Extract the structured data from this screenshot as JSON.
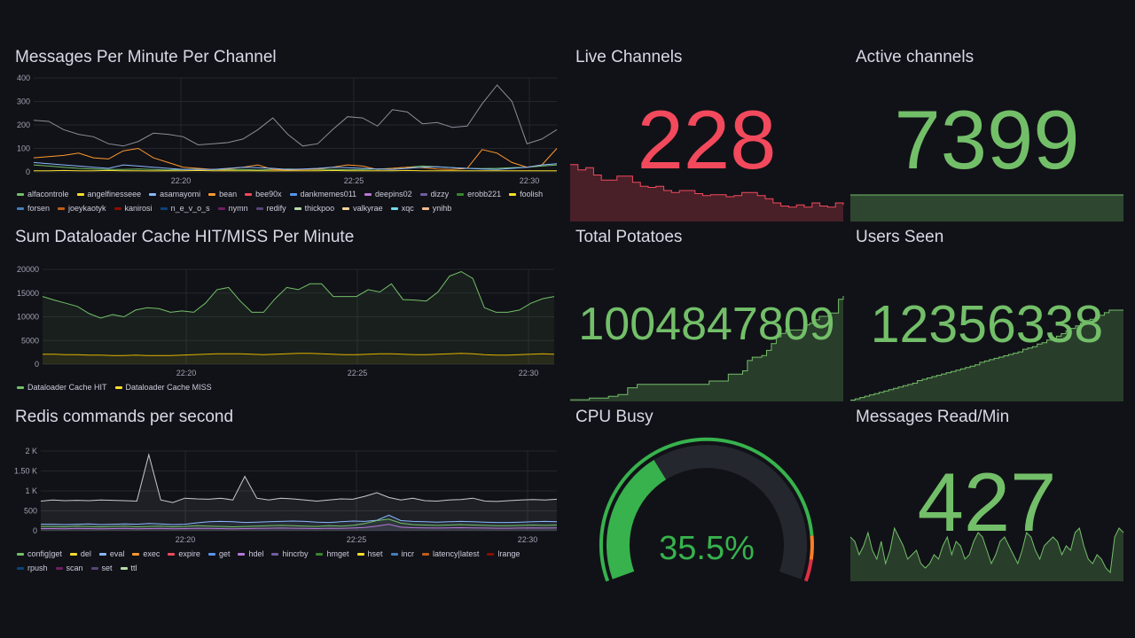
{
  "panels": {
    "messages": {
      "title": "Messages Per Minute Per Channel",
      "legend": [
        {
          "name": "alfacontrole",
          "color": "#73bf69"
        },
        {
          "name": "angelfinesseee",
          "color": "#fade2a"
        },
        {
          "name": "asamayomi",
          "color": "#8ab8ff"
        },
        {
          "name": "bean",
          "color": "#ff9830"
        },
        {
          "name": "bee90x",
          "color": "#f2495c"
        },
        {
          "name": "dankmemes011",
          "color": "#5794f2"
        },
        {
          "name": "deepins02",
          "color": "#b877d9"
        },
        {
          "name": "dizzy",
          "color": "#705da0"
        },
        {
          "name": "erobb221",
          "color": "#37872d"
        },
        {
          "name": "foolish",
          "color": "#fade2a"
        },
        {
          "name": "forsen",
          "color": "#447ebc"
        },
        {
          "name": "joeykaotyk",
          "color": "#c15c17"
        },
        {
          "name": "kanirosi",
          "color": "#890f02"
        },
        {
          "name": "n_e_v_o_s",
          "color": "#0a437c"
        },
        {
          "name": "nymn",
          "color": "#6d1f62"
        },
        {
          "name": "redify",
          "color": "#584477"
        },
        {
          "name": "thickpoo",
          "color": "#b7dbab"
        },
        {
          "name": "valkyrae",
          "color": "#f4d598"
        },
        {
          "name": "xqc",
          "color": "#70dbed"
        },
        {
          "name": "ynihb",
          "color": "#f9ba8f"
        }
      ]
    },
    "dataloader": {
      "title": "Sum Dataloader Cache HIT/MISS Per Minute",
      "legend": [
        {
          "name": "Dataloader Cache HIT",
          "color": "#73bf69"
        },
        {
          "name": "Dataloader Cache MISS",
          "color": "#fade2a"
        }
      ]
    },
    "redis": {
      "title": "Redis commands per second",
      "legend": [
        {
          "name": "config|get",
          "color": "#73bf69"
        },
        {
          "name": "del",
          "color": "#fade2a"
        },
        {
          "name": "eval",
          "color": "#8ab8ff"
        },
        {
          "name": "exec",
          "color": "#ff9830"
        },
        {
          "name": "expire",
          "color": "#f2495c"
        },
        {
          "name": "get",
          "color": "#5794f2"
        },
        {
          "name": "hdel",
          "color": "#b877d9"
        },
        {
          "name": "hincrby",
          "color": "#705da0"
        },
        {
          "name": "hmget",
          "color": "#37872d"
        },
        {
          "name": "hset",
          "color": "#fade2a"
        },
        {
          "name": "incr",
          "color": "#447ebc"
        },
        {
          "name": "latency|latest",
          "color": "#c15c17"
        },
        {
          "name": "lrange",
          "color": "#890f02"
        },
        {
          "name": "rpush",
          "color": "#0a437c"
        },
        {
          "name": "scan",
          "color": "#6d1f62"
        },
        {
          "name": "set",
          "color": "#584477"
        },
        {
          "name": "ttl",
          "color": "#b7dbab"
        }
      ]
    },
    "live_channels": {
      "title": "Live Channels",
      "value": "228",
      "color": "#f2495c"
    },
    "active_channels": {
      "title": "Active channels",
      "value": "7399",
      "color": "#73bf69"
    },
    "total_potatoes": {
      "title": "Total Potatoes",
      "value": "1004847809",
      "color": "#73bf69"
    },
    "users_seen": {
      "title": "Users Seen",
      "value": "12356338",
      "color": "#73bf69"
    },
    "cpu_busy": {
      "title": "CPU Busy",
      "value": "35.5%",
      "percent": 35.5,
      "color": "#37b24d"
    },
    "messages_read": {
      "title": "Messages Read/Min",
      "value": "427",
      "color": "#73bf69"
    }
  },
  "chart_data": [
    {
      "type": "line",
      "title": "Messages Per Minute Per Channel",
      "xlabel": "",
      "ylabel": "",
      "x_ticks": [
        "22:20",
        "22:25",
        "22:30"
      ],
      "y_ticks": [
        "0",
        "100",
        "200",
        "300",
        "400"
      ],
      "ylim": [
        0,
        400
      ],
      "series": [
        {
          "name": "alfacontrole",
          "values": [
            30,
            25,
            20,
            15,
            12,
            10,
            10,
            12,
            10,
            8,
            10,
            12,
            10,
            9,
            10,
            8,
            10,
            12,
            11,
            10,
            10,
            9,
            10,
            12,
            15,
            20,
            25,
            22,
            18,
            15,
            14,
            15,
            18,
            20,
            25,
            30
          ]
        },
        {
          "name": "angelfinesseee",
          "values": [
            5,
            5,
            6,
            5,
            5,
            6,
            5,
            5,
            4,
            5,
            5,
            6,
            5,
            5,
            5,
            5,
            4,
            5,
            5,
            5,
            6,
            5,
            5,
            5,
            5,
            6,
            5,
            5,
            5,
            5,
            5,
            5,
            5,
            5,
            5,
            5
          ]
        },
        {
          "name": "asamayomi",
          "values": [
            220,
            215,
            180,
            160,
            150,
            120,
            110,
            130,
            165,
            160,
            150,
            115,
            120,
            125,
            140,
            180,
            230,
            160,
            110,
            120,
            180,
            235,
            230,
            195,
            265,
            255,
            205,
            210,
            190,
            195,
            290,
            370,
            300,
            120,
            140,
            180
          ]
        },
        {
          "name": "bean",
          "values": [
            60,
            65,
            70,
            80,
            60,
            55,
            90,
            100,
            60,
            40,
            20,
            15,
            10,
            12,
            20,
            30,
            10,
            8,
            10,
            12,
            20,
            30,
            25,
            10,
            15,
            20,
            18,
            12,
            10,
            15,
            95,
            80,
            40,
            20,
            30,
            100
          ]
        },
        {
          "name": "bee90x",
          "values": [
            40,
            35,
            30,
            25,
            20,
            15,
            30,
            25,
            20,
            15,
            10,
            10,
            10,
            15,
            20,
            18,
            15,
            10,
            12,
            15,
            20,
            18,
            15,
            12,
            10,
            15,
            20,
            22,
            18,
            15,
            12,
            10,
            15,
            20,
            30,
            35
          ]
        }
      ]
    },
    {
      "type": "line",
      "title": "Sum Dataloader Cache HIT/MISS Per Minute",
      "xlabel": "",
      "ylabel": "",
      "x_ticks": [
        "22:20",
        "22:25",
        "22:30"
      ],
      "y_ticks": [
        "0",
        "5000",
        "10000",
        "15000",
        "20000"
      ],
      "ylim": [
        0,
        21000
      ],
      "series": [
        {
          "name": "Dataloader Cache HIT",
          "values": [
            15000,
            14200,
            13500,
            12800,
            11200,
            10200,
            11000,
            10500,
            12000,
            12500,
            12300,
            11500,
            11800,
            11500,
            13500,
            16500,
            17000,
            14000,
            11500,
            11500,
            14500,
            17000,
            16500,
            17800,
            17800,
            15000,
            15000,
            15000,
            16500,
            16000,
            17800,
            14300,
            14200,
            14000,
            16000,
            19500,
            20500,
            19000,
            12500,
            11500,
            11500,
            12000,
            13500,
            14500,
            15000
          ]
        },
        {
          "name": "Dataloader Cache MISS",
          "values": [
            2200,
            2200,
            2100,
            2100,
            2000,
            2000,
            1900,
            1900,
            2000,
            1900,
            1900,
            1900,
            2000,
            2100,
            2200,
            2300,
            2300,
            2300,
            2200,
            2100,
            2200,
            2300,
            2400,
            2400,
            2300,
            2200,
            2100,
            2100,
            2200,
            2300,
            2300,
            2200,
            2100,
            2100,
            2200,
            2300,
            2400,
            2300,
            2100,
            2000,
            2000,
            2100,
            2200,
            2300,
            2200
          ]
        }
      ]
    },
    {
      "type": "line",
      "title": "Redis commands per second",
      "xlabel": "",
      "ylabel": "",
      "x_ticks": [
        "22:20",
        "22:25",
        "22:30"
      ],
      "y_ticks": [
        "0",
        "500",
        "1 K",
        "1.50 K",
        "2 K"
      ],
      "ylim": [
        0,
        2200
      ],
      "series": [
        {
          "name": "config|get",
          "values": [
            820,
            850,
            830,
            840,
            830,
            850,
            840,
            830,
            820,
            2100,
            850,
            780,
            900,
            880,
            870,
            900,
            850,
            1500,
            900,
            850,
            900,
            880,
            850,
            820,
            850,
            880,
            870,
            950,
            1050,
            920,
            850,
            900,
            830,
            820,
            850,
            860,
            900,
            820,
            810,
            830,
            850,
            860,
            850,
            870
          ]
        },
        {
          "name": "get",
          "values": [
            180,
            180,
            170,
            180,
            190,
            170,
            180,
            190,
            180,
            200,
            190,
            170,
            180,
            220,
            250,
            260,
            250,
            230,
            240,
            250,
            260,
            270,
            260,
            240,
            230,
            250,
            270,
            260,
            290,
            430,
            280,
            260,
            250,
            240,
            250,
            260,
            250,
            240,
            230,
            230,
            240,
            250,
            260,
            250
          ]
        },
        {
          "name": "hmget",
          "values": [
            120,
            120,
            110,
            130,
            120,
            110,
            120,
            130,
            110,
            120,
            130,
            110,
            120,
            140,
            130,
            120,
            110,
            120,
            130,
            140,
            150,
            140,
            130,
            120,
            140,
            130,
            150,
            200,
            280,
            320,
            210,
            170,
            160,
            150,
            160,
            170,
            160,
            150,
            140,
            140,
            150,
            160,
            150,
            160
          ]
        },
        {
          "name": "set",
          "values": [
            60,
            60,
            55,
            65,
            60,
            55,
            60,
            65,
            55,
            60,
            65,
            55,
            60,
            70,
            65,
            60,
            55,
            60,
            65,
            70,
            75,
            70,
            65,
            60,
            70,
            65,
            75,
            90,
            130,
            180,
            100,
            85,
            80,
            75,
            80,
            85,
            80,
            75,
            70,
            70,
            75,
            80,
            75,
            80
          ]
        }
      ]
    },
    {
      "type": "area",
      "title": "Live Channels",
      "values": [
        55,
        50,
        52,
        45,
        40,
        40,
        44,
        44,
        38,
        34,
        33,
        34,
        30,
        28,
        30,
        30,
        27,
        25,
        26,
        26,
        24,
        25,
        28,
        28,
        25,
        22,
        18,
        15,
        14,
        16,
        14,
        18,
        15,
        14,
        18,
        16
      ]
    },
    {
      "type": "area",
      "title": "Active channels",
      "values": [
        7399,
        7399,
        7399,
        7399,
        7399,
        7399,
        7399,
        7399,
        7399,
        7399
      ]
    },
    {
      "type": "area",
      "title": "Total Potatoes",
      "values": [
        1,
        1,
        1,
        1,
        2,
        2,
        2,
        2,
        3,
        3,
        4,
        4,
        8,
        8,
        10,
        10,
        10,
        10,
        10,
        10,
        10,
        10,
        10,
        10,
        10,
        10,
        10,
        10,
        10,
        12,
        12,
        12,
        12,
        16,
        16,
        16,
        18,
        24,
        26,
        26,
        27,
        30,
        34,
        38,
        40,
        42,
        42,
        42,
        42,
        45,
        46,
        48,
        50,
        50,
        52,
        52,
        60,
        62
      ]
    },
    {
      "type": "area",
      "title": "Users Seen",
      "values": [
        1,
        2,
        3,
        4,
        5,
        6,
        7,
        8,
        9,
        10,
        11,
        12,
        13,
        14,
        16,
        17,
        18,
        19,
        20,
        21,
        22,
        23,
        24,
        25,
        26,
        27,
        28,
        30,
        31,
        32,
        33,
        34,
        35,
        36,
        37,
        38,
        40,
        41,
        42,
        44,
        45,
        47,
        48,
        50,
        52,
        54,
        56,
        58,
        60,
        62,
        63,
        64,
        66,
        68,
        70,
        70,
        70,
        70
      ]
    },
    {
      "type": "area",
      "title": "Messages Read/Min",
      "values": [
        50,
        45,
        30,
        40,
        55,
        35,
        25,
        45,
        20,
        35,
        60,
        50,
        40,
        25,
        30,
        35,
        20,
        15,
        20,
        30,
        25,
        40,
        50,
        30,
        45,
        40,
        25,
        30,
        45,
        55,
        50,
        35,
        20,
        30,
        45,
        50,
        40,
        30,
        20,
        35,
        55,
        50,
        35,
        25,
        40,
        45,
        50,
        45,
        30,
        40,
        35,
        55,
        60,
        40,
        25,
        20,
        30,
        25,
        15,
        10,
        50,
        60,
        55
      ]
    }
  ]
}
